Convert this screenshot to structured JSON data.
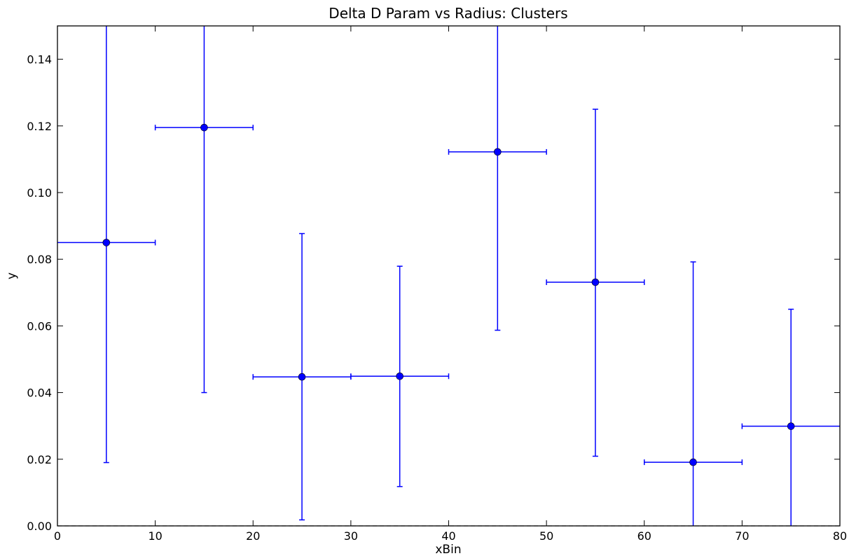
{
  "chart_data": {
    "type": "scatter",
    "title": "Delta D Param vs Radius: Clusters",
    "xlabel": "xBin",
    "ylabel": "y",
    "xlim": [
      0,
      80
    ],
    "ylim": [
      0.0,
      0.15
    ],
    "grid": false,
    "legend": "none",
    "x_ticks": [
      "0",
      "10",
      "20",
      "30",
      "40",
      "50",
      "60",
      "70",
      "80"
    ],
    "y_ticks": [
      "0.00",
      "0.02",
      "0.04",
      "0.06",
      "0.08",
      "0.10",
      "0.12",
      "0.14"
    ],
    "colors": {
      "series": "#0000ff",
      "axis": "#000000",
      "background": "#ffffff"
    },
    "series": [
      {
        "marker": "circle",
        "error_bars": true,
        "points": [
          {
            "x": 5,
            "y": 0.085,
            "xerr": 5,
            "yerr_low": 0.019,
            "yerr_high": 0.15
          },
          {
            "x": 15,
            "y": 0.1195,
            "xerr": 5,
            "yerr_low": 0.04,
            "yerr_high": 0.15
          },
          {
            "x": 25,
            "y": 0.0447,
            "xerr": 5,
            "yerr_low": 0.0018,
            "yerr_high": 0.0877
          },
          {
            "x": 35,
            "y": 0.0449,
            "xerr": 5,
            "yerr_low": 0.0118,
            "yerr_high": 0.0779
          },
          {
            "x": 45,
            "y": 0.1122,
            "xerr": 5,
            "yerr_low": 0.0587,
            "yerr_high": 0.15
          },
          {
            "x": 55,
            "y": 0.0731,
            "xerr": 5,
            "yerr_low": 0.0209,
            "yerr_high": 0.125
          },
          {
            "x": 65,
            "y": 0.0191,
            "xerr": 5,
            "yerr_low": 0.0,
            "yerr_high": 0.0792
          },
          {
            "x": 75,
            "y": 0.0299,
            "xerr": 5,
            "yerr_low": 0.0,
            "yerr_high": 0.065
          }
        ]
      }
    ]
  }
}
